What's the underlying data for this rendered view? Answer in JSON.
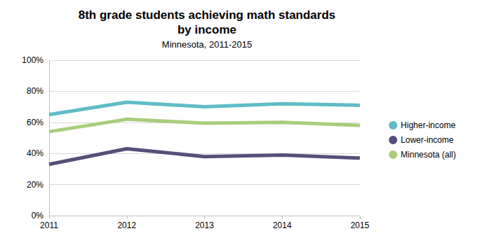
{
  "chart_data": {
    "type": "line",
    "title": "8th grade students achieving math standards\nby income",
    "subtitle": "Minnesota, 2011-2015",
    "categories": [
      "2011",
      "2012",
      "2013",
      "2014",
      "2015"
    ],
    "series": [
      {
        "name": "Higher-income",
        "color": "#5fbcc6",
        "values": [
          65,
          73,
          70,
          72,
          71
        ]
      },
      {
        "name": "Lower-income",
        "color": "#584d7a",
        "values": [
          33,
          43,
          38,
          39,
          37
        ]
      },
      {
        "name": "Minnesota (all)",
        "color": "#a8cd7c",
        "values": [
          54,
          62,
          59.5,
          60,
          58
        ]
      }
    ],
    "ylim": [
      0,
      100
    ],
    "yticks": [
      {
        "value": 0,
        "label": "0%"
      },
      {
        "value": 20,
        "label": "20%"
      },
      {
        "value": 40,
        "label": "40%"
      },
      {
        "value": 60,
        "label": "60%"
      },
      {
        "value": 80,
        "label": "80%"
      },
      {
        "value": 100,
        "label": "100%"
      }
    ],
    "grid": true,
    "legend": "right"
  }
}
